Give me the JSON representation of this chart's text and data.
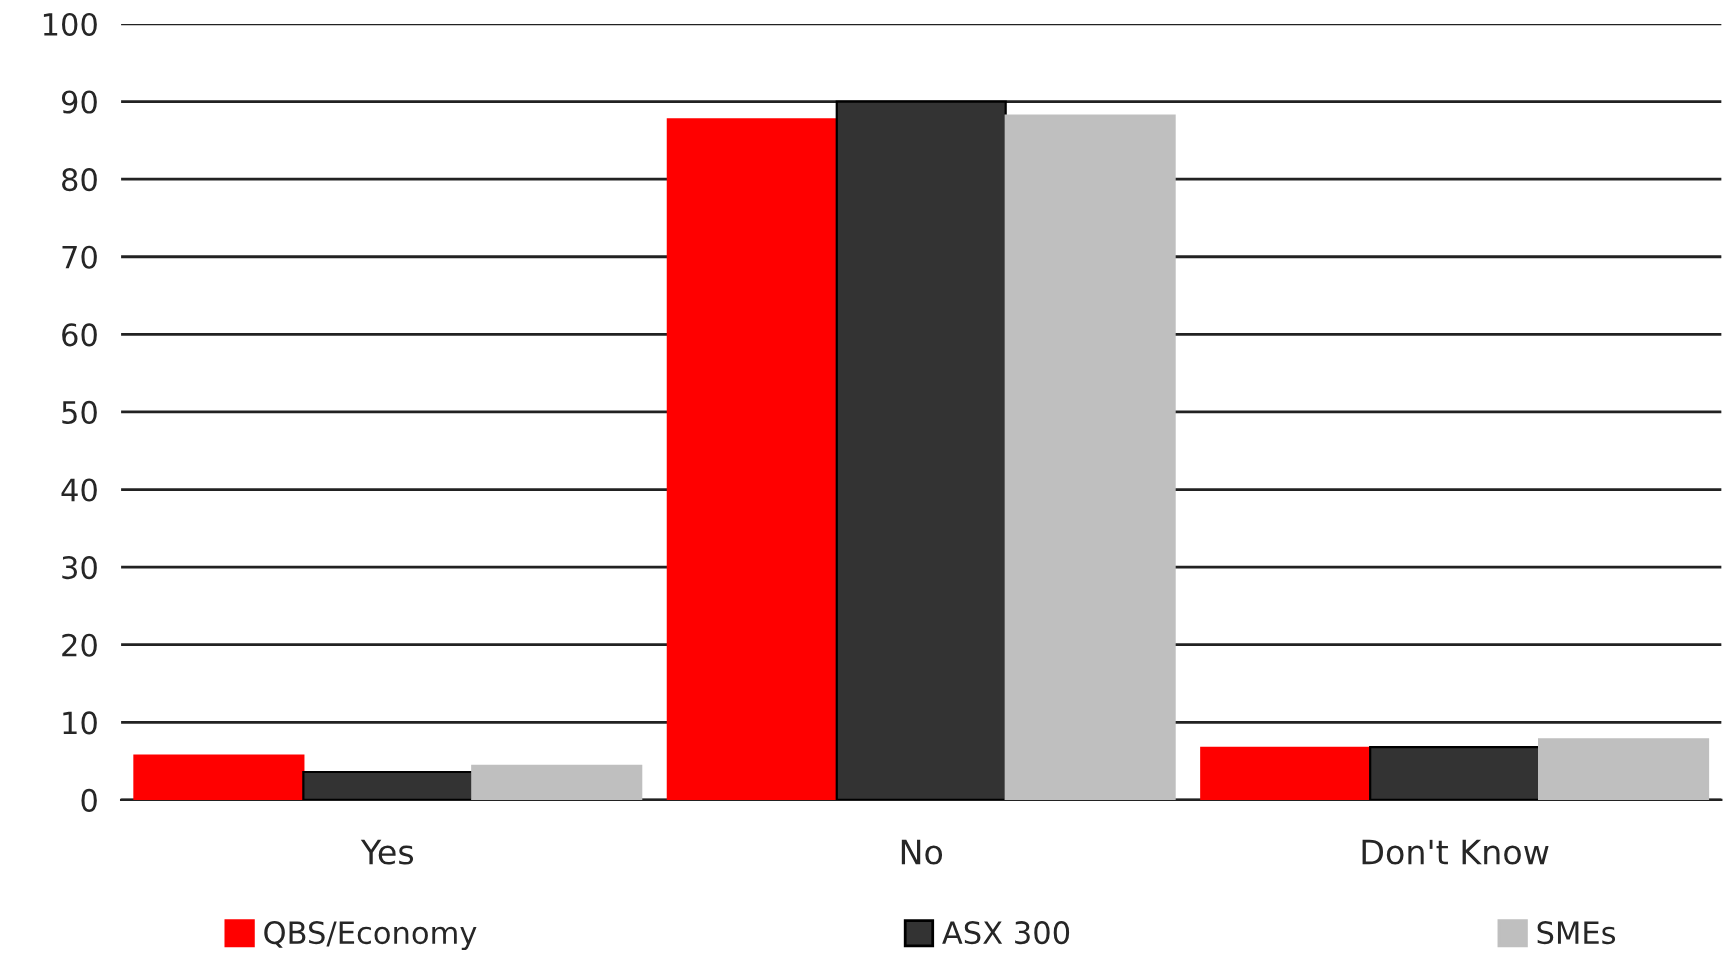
{
  "chart_data": {
    "type": "bar",
    "categories": [
      "Yes",
      "No",
      "Don't Know"
    ],
    "series": [
      {
        "name": "QBS/Economy",
        "color": "#ff0000",
        "values": [
          5.7,
          87.7,
          6.7
        ]
      },
      {
        "name": "ASX 300",
        "color": "#333333",
        "values": [
          3.6,
          90,
          6.8
        ]
      },
      {
        "name": "SMEs",
        "color": "#bfbfbf",
        "values": [
          4.4,
          88.2,
          7.8
        ]
      }
    ],
    "ylim": [
      0,
      100
    ],
    "yticks": [
      0,
      10,
      20,
      30,
      40,
      50,
      60,
      70,
      80,
      90,
      100
    ],
    "grid": "y",
    "legend": "bottom"
  }
}
